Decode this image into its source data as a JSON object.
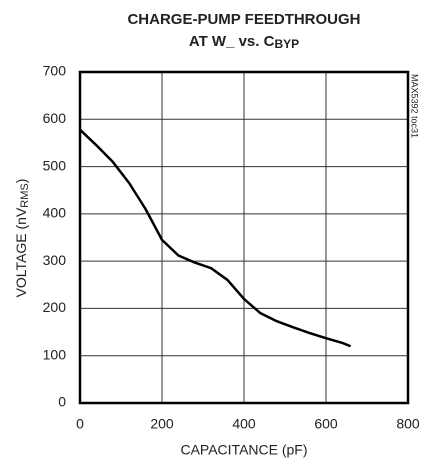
{
  "chart_data": {
    "type": "line",
    "title": [
      "CHARGE-PUMP FEEDTHROUGH",
      "AT W_ vs. C"
    ],
    "title_subscript": "BYP",
    "x_label": "CAPACITANCE (pF)",
    "y_label": [
      "VOLTAGE (nV",
      "RMS",
      ")"
    ],
    "watermark": "MAX5392 toc31",
    "x": [
      0,
      40,
      80,
      120,
      160,
      200,
      240,
      280,
      320,
      360,
      400,
      440,
      480,
      520,
      560,
      600,
      640,
      660
    ],
    "values": [
      578,
      545,
      510,
      465,
      410,
      345,
      312,
      297,
      285,
      260,
      220,
      190,
      173,
      160,
      148,
      137,
      127,
      120
    ],
    "color": "#000000",
    "xlim": [
      0,
      800
    ],
    "xticks": [
      0,
      200,
      400,
      600,
      800
    ],
    "ylim": [
      0,
      700
    ],
    "yticks": [
      0,
      100,
      200,
      300,
      400,
      500,
      600,
      700
    ],
    "grid": true
  }
}
